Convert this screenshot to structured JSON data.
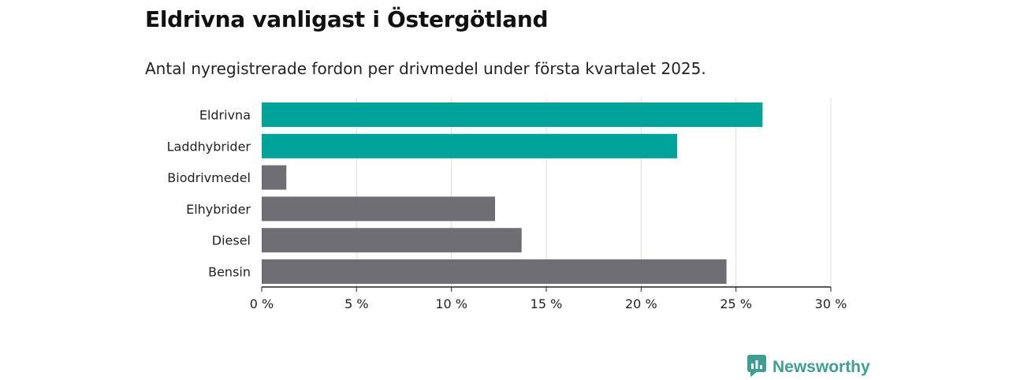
{
  "header": {
    "title": "Eldrivna vanligast i Östergötland",
    "subtitle": "Antal nyregistrerade fordon per drivmedel under första kvartalet 2025."
  },
  "brand": {
    "name": "Newsworthy",
    "icon": "newsworthy-logo-icon",
    "color": "#3e9e93"
  },
  "colors": {
    "highlight": "#00a39a",
    "default": "#6f6e75",
    "grid": "#dddddd",
    "axis": "#222222"
  },
  "chart_data": {
    "type": "bar",
    "orientation": "horizontal",
    "categories": [
      "Eldrivna",
      "Laddhybrider",
      "Biodrivmedel",
      "Elhybrider",
      "Diesel",
      "Bensin"
    ],
    "values": [
      26.4,
      21.9,
      1.3,
      12.3,
      13.7,
      24.5
    ],
    "highlighted": [
      true,
      true,
      false,
      false,
      false,
      false
    ],
    "xlim": [
      0,
      30
    ],
    "xticks": [
      0,
      5,
      10,
      15,
      20,
      25,
      30
    ],
    "xtick_labels": [
      "0 %",
      "5 %",
      "10 %",
      "15 %",
      "20 %",
      "25 %",
      "30 %"
    ],
    "grid": true
  }
}
